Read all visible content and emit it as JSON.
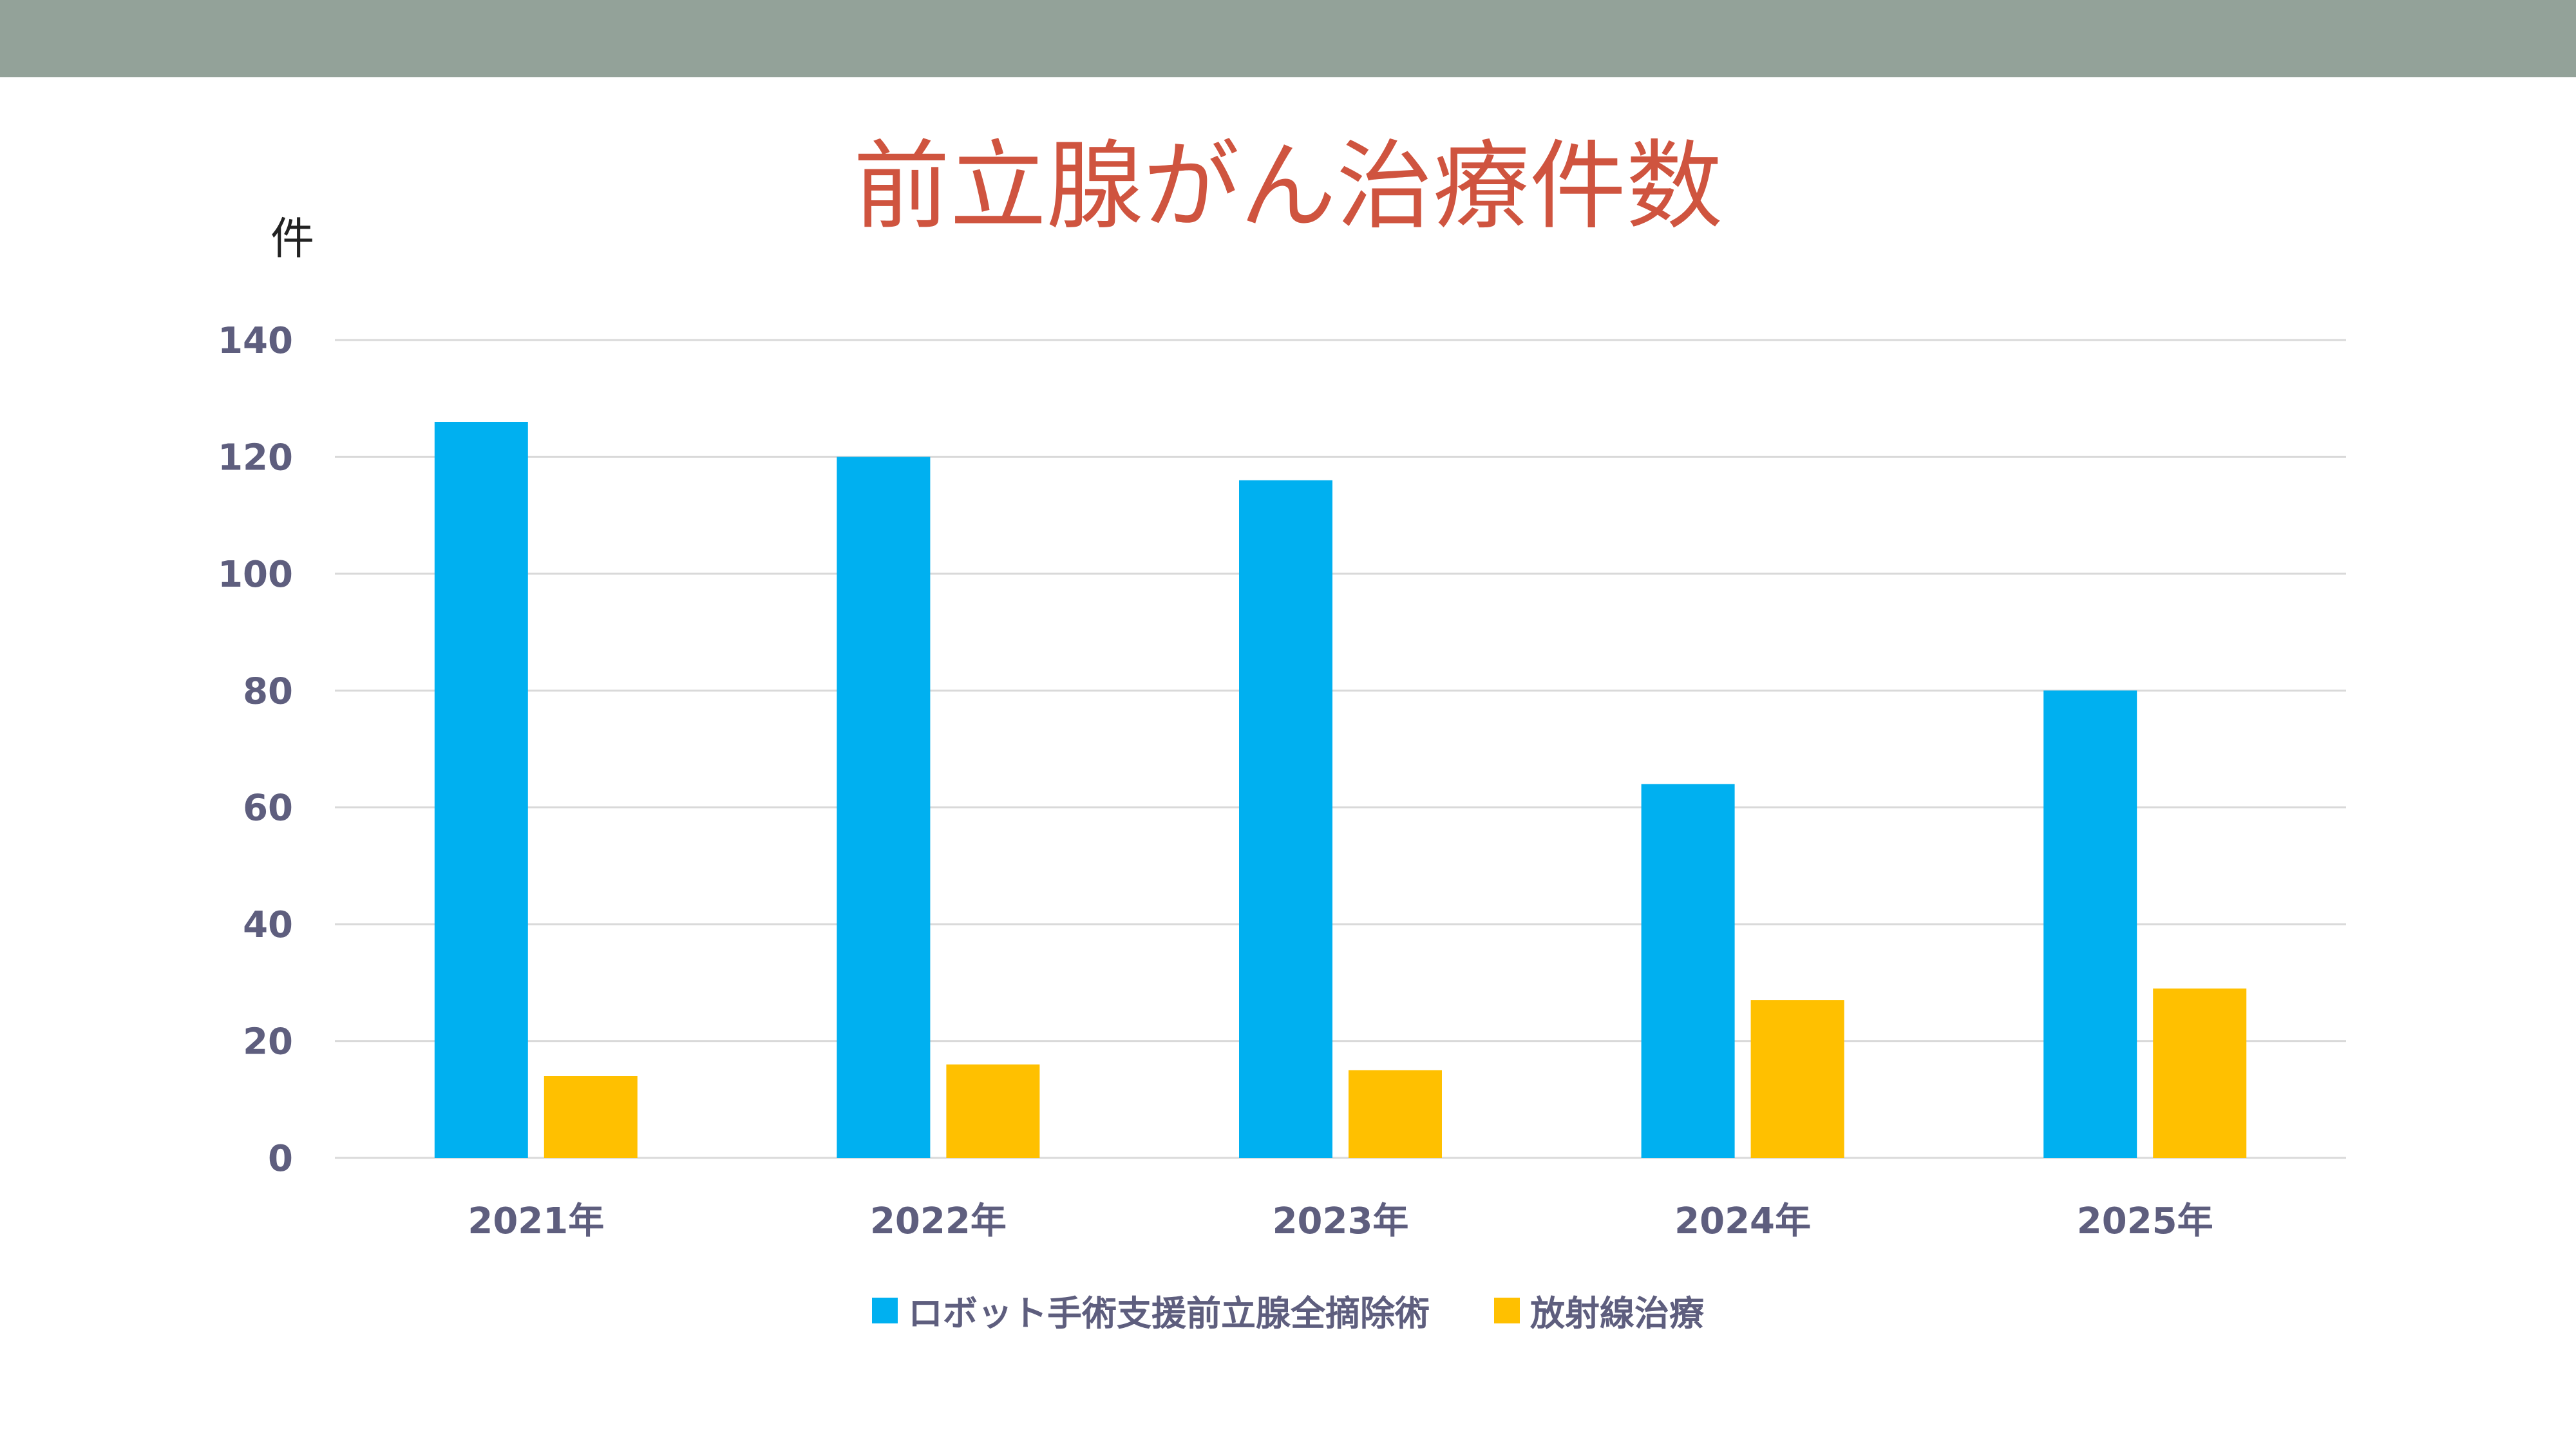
{
  "title": "前立腺がん治療件数",
  "unit_label": "件",
  "colors": {
    "series_1": "#00B0F0",
    "series_2": "#FFC000",
    "top_bar": "#93A299",
    "title": "#CF543F"
  },
  "chart_data": {
    "type": "bar",
    "title": "前立腺がん治療件数",
    "ylabel": "件",
    "xlabel": "",
    "ylim": [
      0,
      140
    ],
    "yticks": [
      0,
      20,
      40,
      60,
      80,
      100,
      120,
      140
    ],
    "grid": true,
    "legend_position": "bottom",
    "categories": [
      "2021年",
      "2022年",
      "2023年",
      "2024年",
      "2025年"
    ],
    "series": [
      {
        "name": "ロボット手術支援前立腺全摘除術",
        "values": [
          126,
          120,
          116,
          64,
          80
        ]
      },
      {
        "name": "放射線治療",
        "values": [
          14,
          16,
          15,
          27,
          29
        ]
      }
    ]
  }
}
